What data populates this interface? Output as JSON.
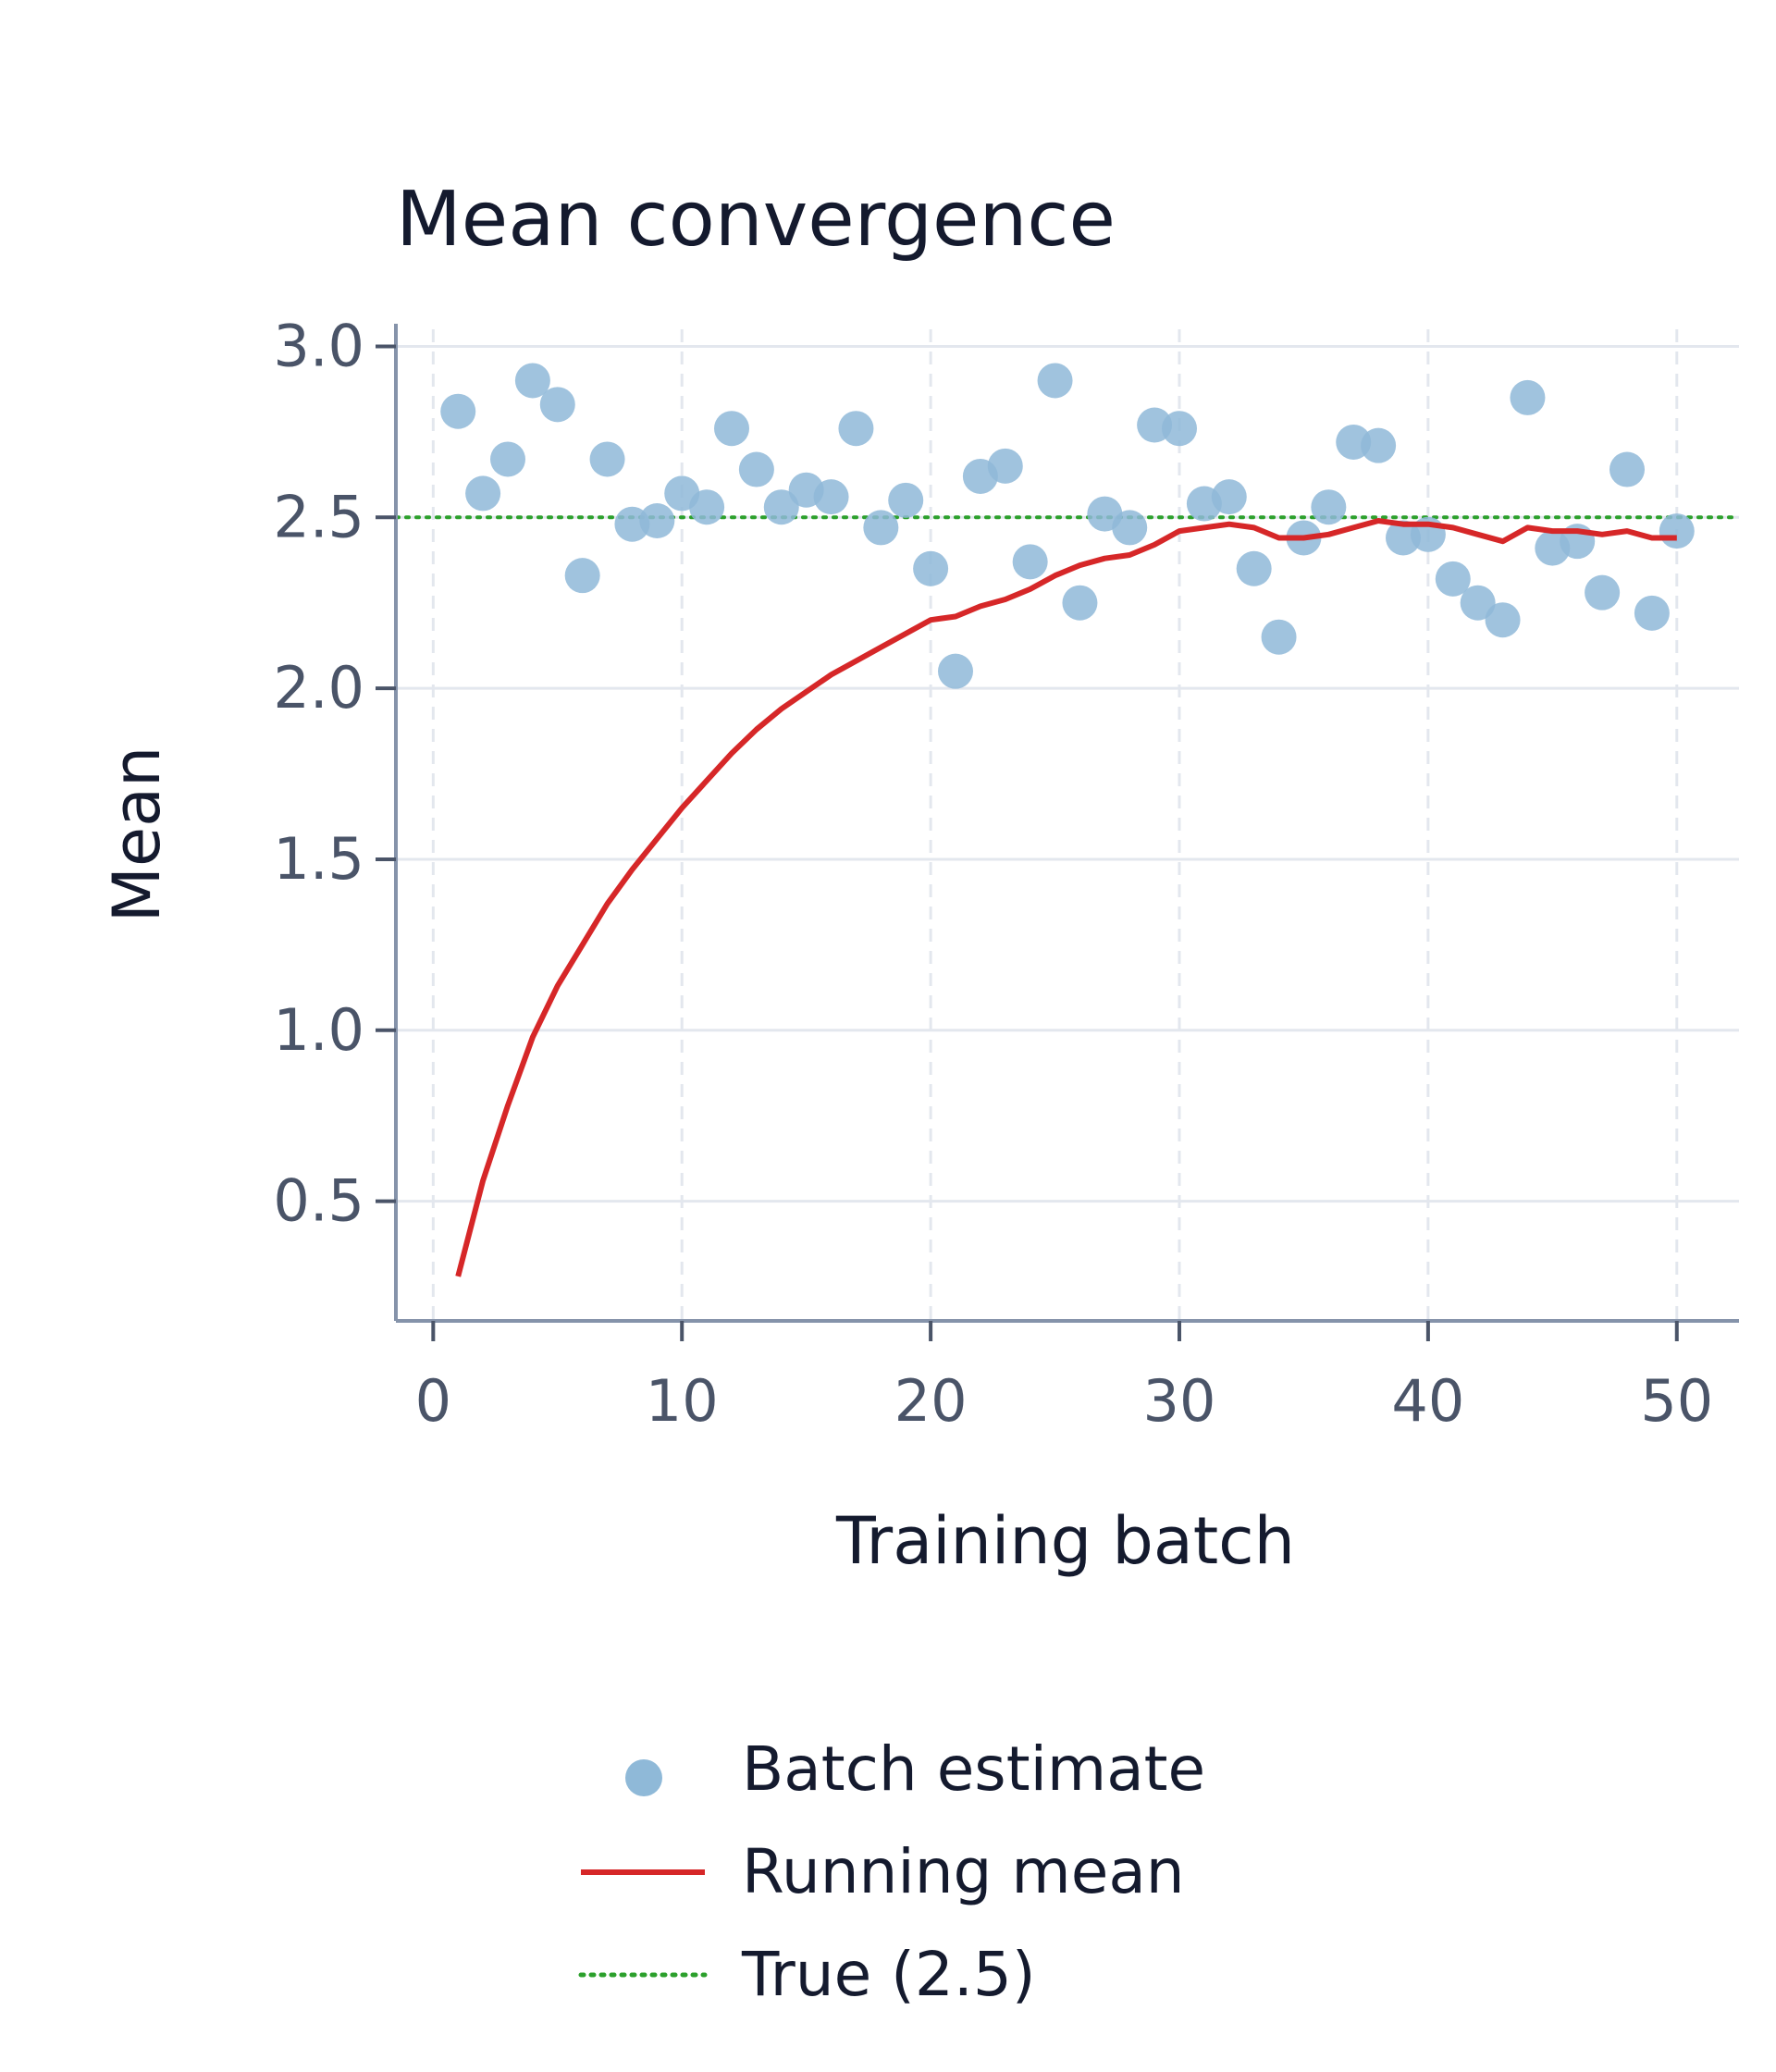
{
  "chart_data": {
    "type": "scatter",
    "title": "Mean convergence",
    "xlabel": "Training batch",
    "ylabel": "Mean",
    "xlim": [
      -1.5,
      52.5
    ],
    "ylim": [
      0.15,
      3.05
    ],
    "xticks": [
      0,
      10,
      20,
      30,
      40,
      50
    ],
    "xtick_labels": [
      "0",
      "10",
      "20",
      "30",
      "40",
      "50"
    ],
    "yticks": [
      0.5,
      1.0,
      1.5,
      2.0,
      2.5,
      3.0
    ],
    "ytick_labels": [
      "0.5",
      "1.0",
      "1.5",
      "2.0",
      "2.5",
      "3.0"
    ],
    "grid": true,
    "legend_position": "bottom-center",
    "series": [
      {
        "name": "Batch estimate",
        "kind": "scatter",
        "color": "#8fb9d8",
        "x": [
          1,
          2,
          3,
          4,
          5,
          6,
          7,
          8,
          9,
          10,
          11,
          12,
          13,
          14,
          15,
          16,
          17,
          18,
          19,
          20,
          21,
          22,
          23,
          24,
          25,
          26,
          27,
          28,
          29,
          30,
          31,
          32,
          33,
          34,
          35,
          36,
          37,
          38,
          39,
          40,
          41,
          42,
          43,
          44,
          45,
          46,
          47,
          48,
          49,
          50
        ],
        "y": [
          2.81,
          2.57,
          2.67,
          2.9,
          2.83,
          2.33,
          2.67,
          2.48,
          2.49,
          2.57,
          2.53,
          2.76,
          2.64,
          2.53,
          2.58,
          2.56,
          2.76,
          2.47,
          2.55,
          2.35,
          2.05,
          2.62,
          2.65,
          2.37,
          2.9,
          2.25,
          2.51,
          2.47,
          2.77,
          2.76,
          2.54,
          2.56,
          2.35,
          2.15,
          2.44,
          2.53,
          2.72,
          2.71,
          2.44,
          2.45,
          2.32,
          2.25,
          2.2,
          2.85,
          2.41,
          2.43,
          2.28,
          2.64,
          2.22,
          2.46
        ]
      },
      {
        "name": "Running mean",
        "kind": "line",
        "color": "#d62728",
        "x": [
          1,
          2,
          3,
          4,
          5,
          6,
          7,
          8,
          9,
          10,
          11,
          12,
          13,
          14,
          15,
          16,
          17,
          18,
          19,
          20,
          21,
          22,
          23,
          24,
          25,
          26,
          27,
          28,
          29,
          30,
          31,
          32,
          33,
          34,
          35,
          36,
          37,
          38,
          39,
          40,
          41,
          42,
          43,
          44,
          45,
          46,
          47,
          48,
          49,
          50
        ],
        "y": [
          0.28,
          0.56,
          0.78,
          0.98,
          1.13,
          1.25,
          1.37,
          1.47,
          1.56,
          1.65,
          1.73,
          1.81,
          1.88,
          1.94,
          1.99,
          2.04,
          2.08,
          2.12,
          2.16,
          2.2,
          2.21,
          2.24,
          2.26,
          2.29,
          2.33,
          2.36,
          2.38,
          2.39,
          2.42,
          2.46,
          2.47,
          2.48,
          2.47,
          2.44,
          2.44,
          2.45,
          2.47,
          2.49,
          2.48,
          2.48,
          2.47,
          2.45,
          2.43,
          2.47,
          2.46,
          2.46,
          2.45,
          2.46,
          2.44,
          2.44
        ]
      },
      {
        "name": "True (2.5)",
        "kind": "hline",
        "color": "#2ca02c",
        "value": 2.5
      }
    ]
  }
}
